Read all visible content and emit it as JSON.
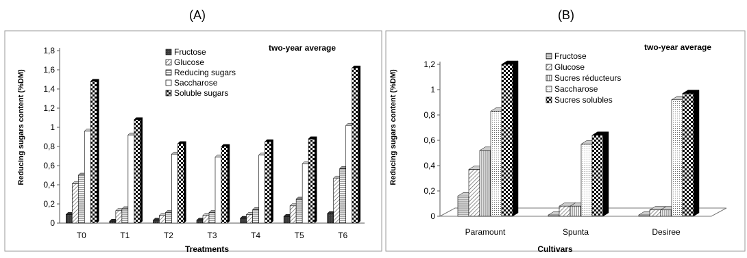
{
  "chart_data": [
    {
      "panel_label": "(A)",
      "type": "bar",
      "annotation": "two-year average",
      "xlabel": "Treatments",
      "ylabel": "Reducing sugars content (%DM)",
      "ylim": [
        0,
        1.8
      ],
      "yticks": [
        "0",
        "0,2",
        "0,4",
        "0,6",
        "0,8",
        "1",
        "1,2",
        "1,4",
        "1,6",
        "1,8"
      ],
      "legend_position": "top-center",
      "categories": [
        "T0",
        "T1",
        "T2",
        "T3",
        "T4",
        "T5",
        "T6"
      ],
      "series": [
        {
          "name": "Fructose",
          "color": "#3a3a3a",
          "pattern": "dark",
          "values": [
            0.09,
            0.02,
            0.03,
            0.03,
            0.05,
            0.07,
            0.1
          ]
        },
        {
          "name": "Glucose",
          "color": "#ffffff",
          "pattern": "diag",
          "values": [
            0.41,
            0.13,
            0.08,
            0.08,
            0.09,
            0.18,
            0.47
          ]
        },
        {
          "name": "Reducing sugars",
          "color": "#d0d0d0",
          "pattern": "hlines",
          "values": [
            0.5,
            0.15,
            0.11,
            0.11,
            0.14,
            0.25,
            0.57
          ]
        },
        {
          "name": "Saccharose",
          "color": "#ffffff",
          "pattern": "white",
          "values": [
            0.96,
            0.92,
            0.72,
            0.69,
            0.71,
            0.62,
            1.02
          ]
        },
        {
          "name": "Soluble sugars",
          "color": "#000000",
          "pattern": "checker",
          "values": [
            1.48,
            1.08,
            0.83,
            0.8,
            0.85,
            0.88,
            1.62
          ]
        }
      ]
    },
    {
      "panel_label": "(B)",
      "type": "bar",
      "annotation": "two-year average",
      "xlabel": "Cultivars",
      "ylabel": "Reducing sugars content (%DM)",
      "ylim": [
        0,
        1.2
      ],
      "yticks": [
        "0",
        "0,2",
        "0,4",
        "0,6",
        "0,8",
        "1",
        "1,2"
      ],
      "legend_position": "top-left",
      "categories": [
        "Paramount",
        "Spunta",
        "Desiree"
      ],
      "series": [
        {
          "name": "Fructose",
          "color": "#ffffff",
          "pattern": "hlines",
          "values": [
            0.16,
            0.01,
            0.01
          ]
        },
        {
          "name": "Glucose",
          "color": "#ffffff",
          "pattern": "diag",
          "values": [
            0.37,
            0.08,
            0.05
          ]
        },
        {
          "name": "Sucres réducteurs",
          "color": "#ffffff",
          "pattern": "vlines",
          "values": [
            0.52,
            0.08,
            0.05
          ]
        },
        {
          "name": "Saccharose",
          "color": "#ffffff",
          "pattern": "dots",
          "values": [
            0.83,
            0.57,
            0.92
          ]
        },
        {
          "name": "Sucres solubles",
          "color": "#000000",
          "pattern": "checker",
          "values": [
            1.2,
            0.64,
            0.97
          ]
        }
      ]
    }
  ]
}
